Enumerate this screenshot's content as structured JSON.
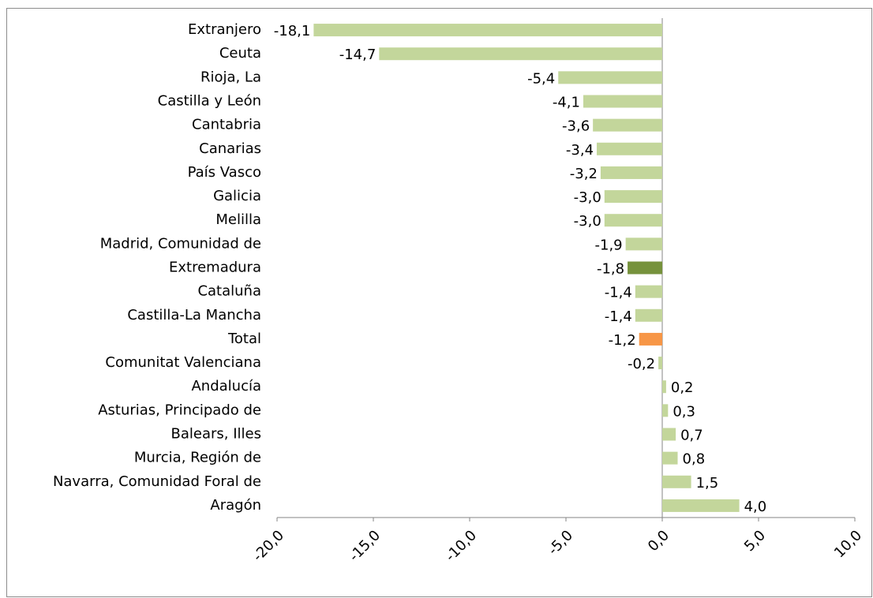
{
  "chart_data": {
    "type": "bar",
    "orientation": "horizontal",
    "categories": [
      "Extranjero",
      "Ceuta",
      "Rioja, La",
      "Castilla y León",
      "Cantabria",
      "Canarias",
      "País Vasco",
      "Galicia",
      "Melilla",
      "Madrid, Comunidad de",
      "Extremadura",
      "Cataluña",
      "Castilla-La Mancha",
      "Total",
      "Comunitat Valenciana",
      "Andalucía",
      "Asturias, Principado de",
      "Balears, Illes",
      "Murcia, Región de",
      "Navarra, Comunidad Foral de",
      "Aragón"
    ],
    "values": [
      -18.1,
      -14.7,
      -5.4,
      -4.1,
      -3.6,
      -3.4,
      -3.2,
      -3.0,
      -3.0,
      -1.9,
      -1.8,
      -1.4,
      -1.4,
      -1.2,
      -0.2,
      0.2,
      0.3,
      0.7,
      0.8,
      1.5,
      4.0
    ],
    "value_labels": [
      "-18,1",
      "-14,7",
      "-5,4",
      "-4,1",
      "-3,6",
      "-3,4",
      "-3,2",
      "-3,0",
      "-3,0",
      "-1,9",
      "-1,8",
      "-1,4",
      "-1,4",
      "-1,2",
      "-0,2",
      "0,2",
      "0,3",
      "0,7",
      "0,8",
      "1,5",
      "4,0"
    ],
    "colors": [
      "#c3d69b",
      "#c3d69b",
      "#c3d69b",
      "#c3d69b",
      "#c3d69b",
      "#c3d69b",
      "#c3d69b",
      "#c3d69b",
      "#c3d69b",
      "#c3d69b",
      "#76923c",
      "#c3d69b",
      "#c3d69b",
      "#f79646",
      "#c3d69b",
      "#c3d69b",
      "#c3d69b",
      "#c3d69b",
      "#c3d69b",
      "#c3d69b",
      "#c3d69b"
    ],
    "xlim": [
      -20,
      10
    ],
    "xticks": [
      {
        "value": -20,
        "label": "-20,0"
      },
      {
        "value": -15,
        "label": "-15,0"
      },
      {
        "value": -10,
        "label": "-10,0"
      },
      {
        "value": -5,
        "label": "-5,0"
      },
      {
        "value": 0,
        "label": "0,0"
      },
      {
        "value": 5,
        "label": "5,0"
      },
      {
        "value": 10,
        "label": "10,0"
      }
    ],
    "grid": false
  }
}
